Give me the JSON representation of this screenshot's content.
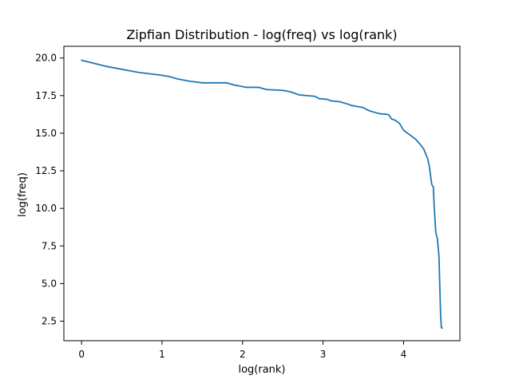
{
  "chart_data": {
    "type": "line",
    "title": "Zipfian Distribution - log(freq) vs log(rank)",
    "xlabel": "log(rank)",
    "ylabel": "log(freq)",
    "xlim": [
      -0.22,
      4.7
    ],
    "ylim": [
      1.2,
      20.78
    ],
    "xticks": [
      0,
      1,
      2,
      3,
      4
    ],
    "xtick_labels": [
      "0",
      "1",
      "2",
      "3",
      "4"
    ],
    "yticks": [
      2.5,
      5.0,
      7.5,
      10.0,
      12.5,
      15.0,
      17.5,
      20.0
    ],
    "ytick_labels": [
      "2.5",
      "5.0",
      "7.5",
      "10.0",
      "12.5",
      "15.0",
      "17.5",
      "20.0"
    ],
    "grid": false,
    "line_color": "#1f77b4",
    "series": [
      {
        "x": [
          0,
          0.3,
          0.7,
          1.0,
          1.1,
          1.2,
          1.35,
          1.5,
          1.6,
          1.8,
          1.9,
          2.05,
          2.2,
          2.3,
          2.5,
          2.6,
          2.7,
          2.9,
          2.95,
          3.05,
          3.1,
          3.2,
          3.3,
          3.35,
          3.4,
          3.5,
          3.55,
          3.6,
          3.7,
          3.8,
          3.82,
          3.85,
          3.9,
          3.95,
          4.0,
          4.05,
          4.1,
          4.15,
          4.2,
          4.25,
          4.3,
          4.32,
          4.35,
          4.37,
          4.38,
          4.4,
          4.42,
          4.44,
          4.46,
          4.47,
          4.48
        ],
        "y": [
          19.85,
          19.45,
          19.05,
          18.85,
          18.75,
          18.6,
          18.45,
          18.35,
          18.35,
          18.35,
          18.2,
          18.05,
          18.05,
          17.9,
          17.85,
          17.75,
          17.55,
          17.45,
          17.3,
          17.25,
          17.15,
          17.1,
          16.95,
          16.85,
          16.8,
          16.7,
          16.55,
          16.45,
          16.3,
          16.25,
          16.2,
          15.95,
          15.85,
          15.65,
          15.2,
          15.0,
          14.8,
          14.6,
          14.3,
          13.95,
          13.3,
          12.8,
          11.6,
          11.4,
          10.2,
          8.4,
          8.0,
          6.8,
          3.0,
          2.05,
          2.05
        ]
      }
    ]
  }
}
